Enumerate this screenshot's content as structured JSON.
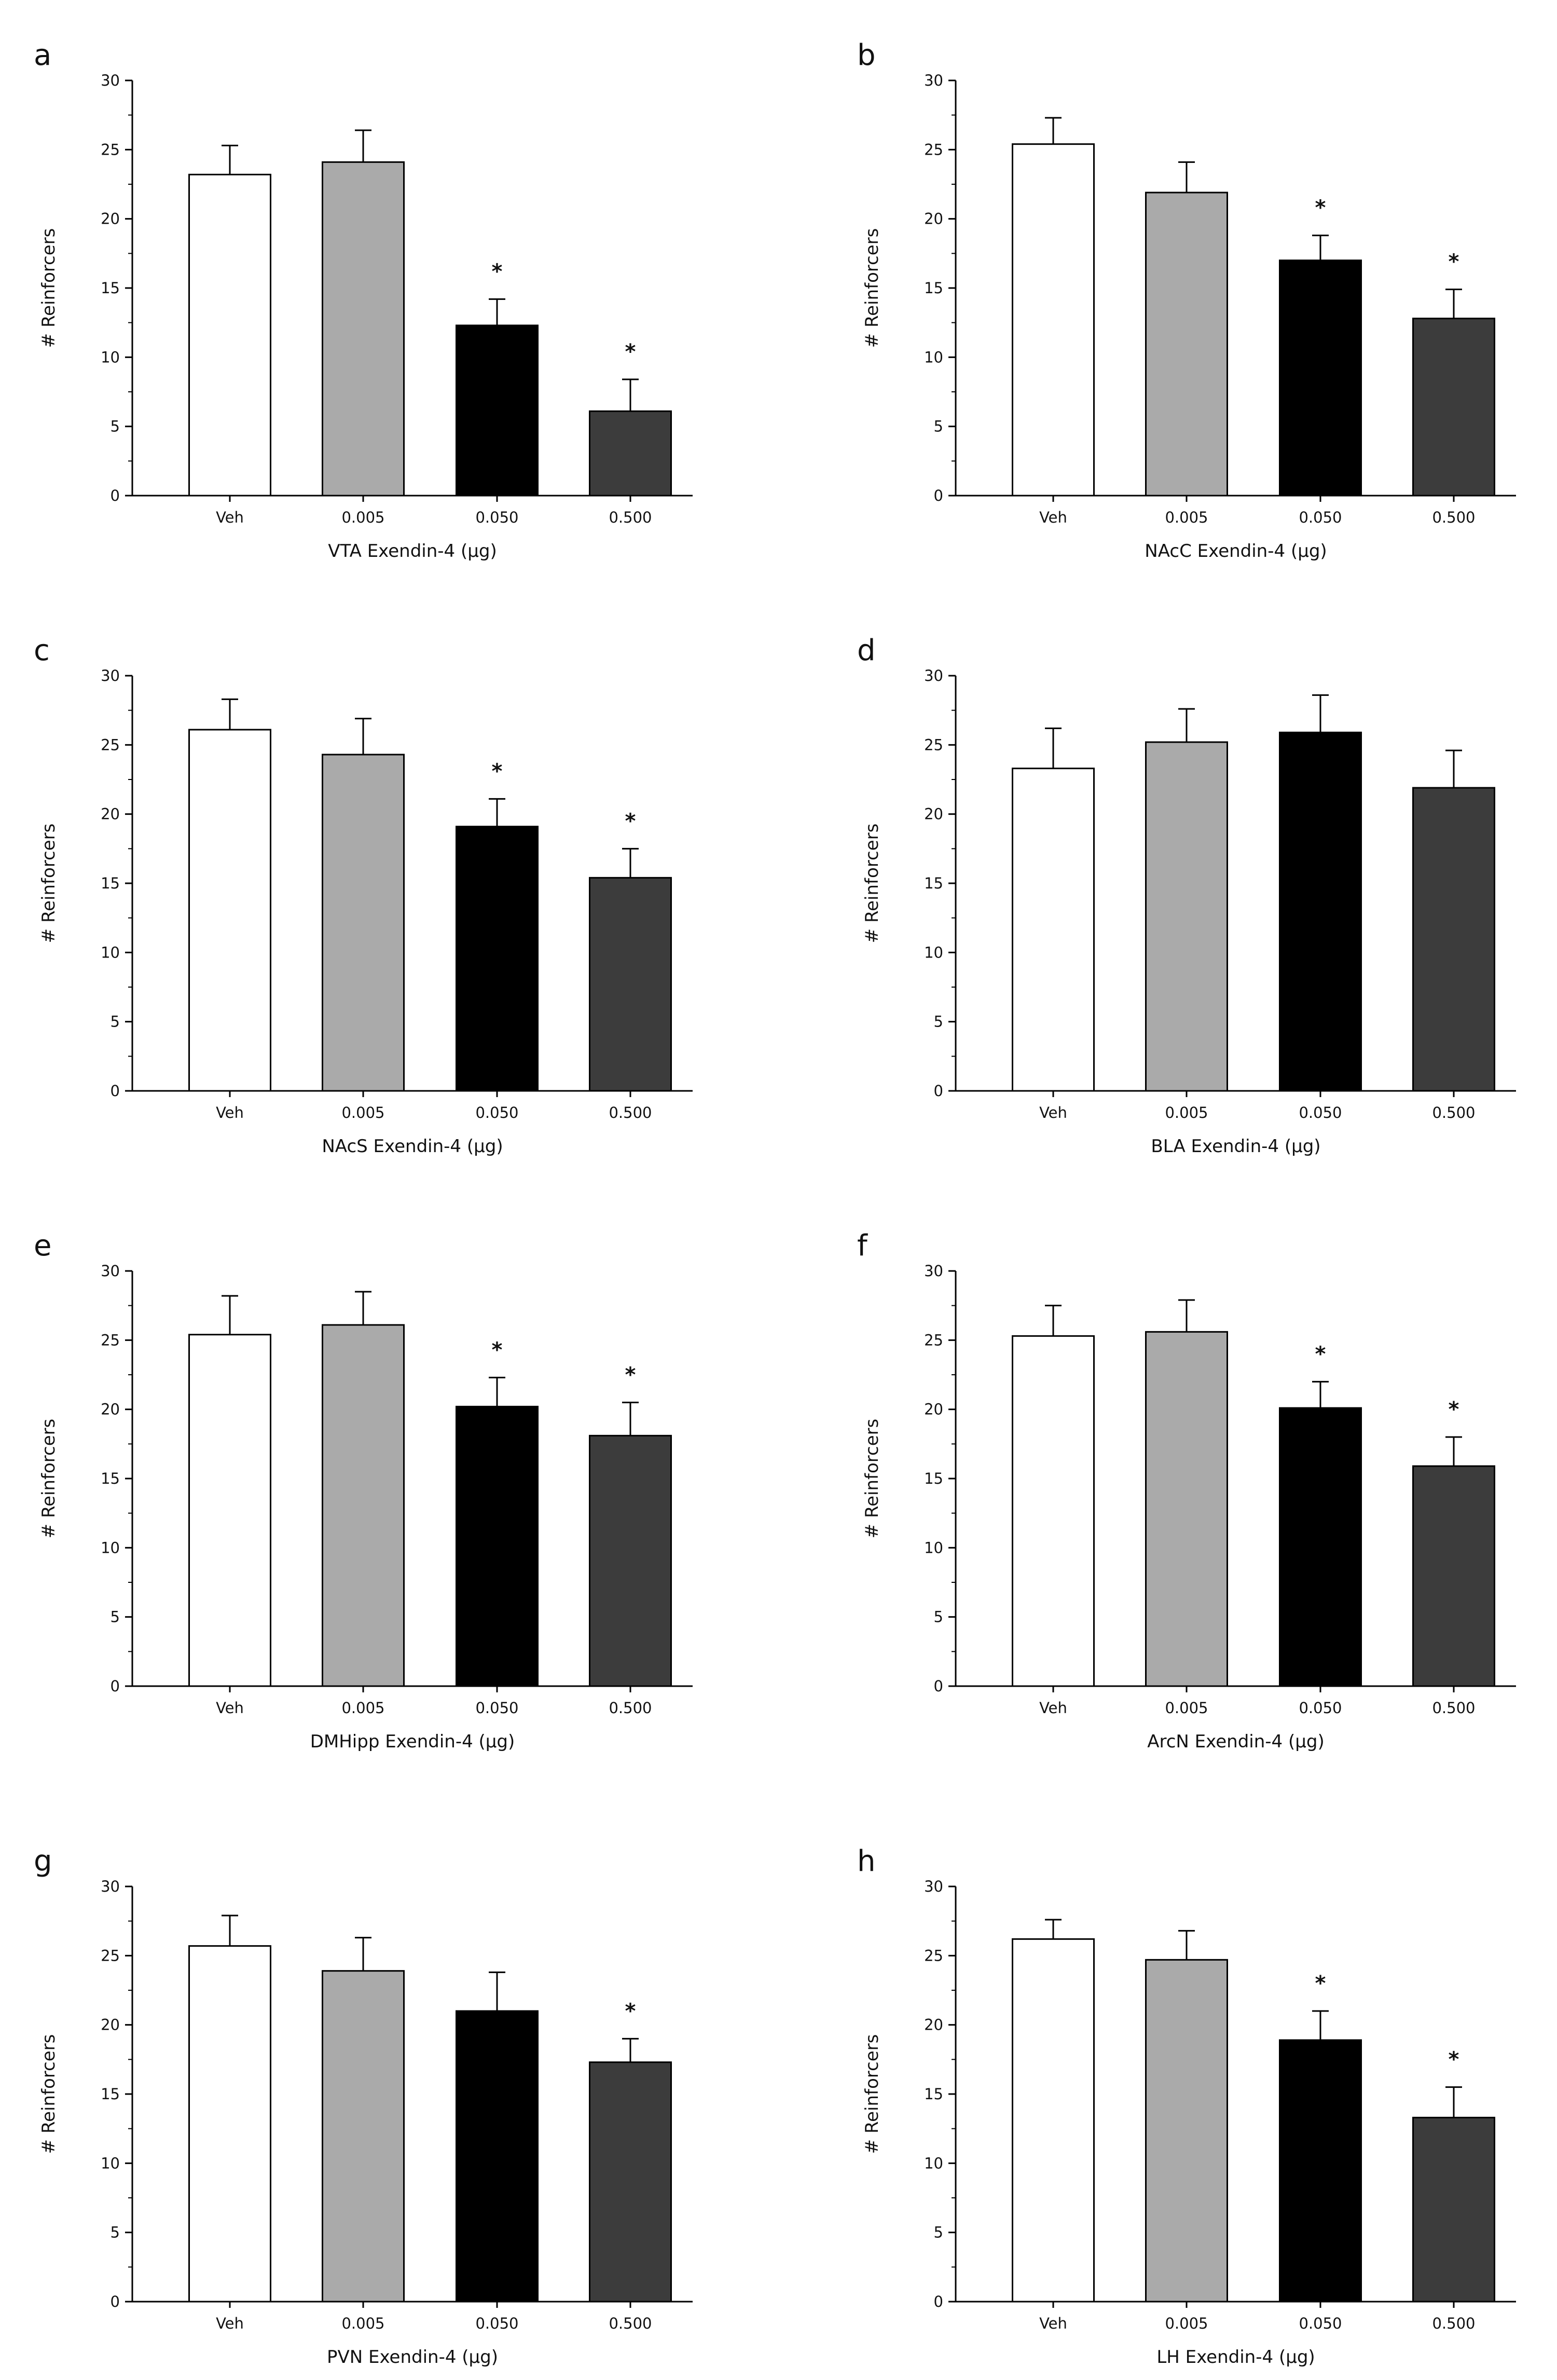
{
  "figure": {
    "panel_count": 8
  },
  "colors": {
    "veh": "#ffffff",
    "d005": "#aaaaaa",
    "d050": "#000000",
    "d500": "#3c3c3c",
    "axis": "#000000"
  },
  "chart_data": [
    {
      "panel": "a",
      "type": "bar",
      "categories": [
        "Veh",
        "0.005",
        "0.050",
        "0.500"
      ],
      "values": [
        23.2,
        24.1,
        12.3,
        6.1
      ],
      "errors": [
        2.1,
        2.3,
        1.9,
        2.3
      ],
      "significant": [
        false,
        false,
        true,
        true
      ],
      "significance_marker": "*",
      "xlabel": "VTA Exendin-4 (µg)",
      "ylabel": "# Reinforcers",
      "ylim": [
        0,
        30
      ],
      "yticks": [
        0,
        5,
        10,
        15,
        20,
        25,
        30
      ]
    },
    {
      "panel": "b",
      "type": "bar",
      "categories": [
        "Veh",
        "0.005",
        "0.050",
        "0.500"
      ],
      "values": [
        25.4,
        21.9,
        17.0,
        12.8
      ],
      "errors": [
        1.9,
        2.2,
        1.8,
        2.1
      ],
      "significant": [
        false,
        false,
        true,
        true
      ],
      "significance_marker": "*",
      "xlabel": "NAcC Exendin-4 (µg)",
      "ylabel": "# Reinforcers",
      "ylim": [
        0,
        30
      ],
      "yticks": [
        0,
        5,
        10,
        15,
        20,
        25,
        30
      ]
    },
    {
      "panel": "c",
      "type": "bar",
      "categories": [
        "Veh",
        "0.005",
        "0.050",
        "0.500"
      ],
      "values": [
        26.1,
        24.3,
        19.1,
        15.4
      ],
      "errors": [
        2.2,
        2.6,
        2.0,
        2.1
      ],
      "significant": [
        false,
        false,
        true,
        true
      ],
      "significance_marker": "*",
      "xlabel": "NAcS Exendin-4 (µg)",
      "ylabel": "# Reinforcers",
      "ylim": [
        0,
        30
      ],
      "yticks": [
        0,
        5,
        10,
        15,
        20,
        25,
        30
      ]
    },
    {
      "panel": "d",
      "type": "bar",
      "categories": [
        "Veh",
        "0.005",
        "0.050",
        "0.500"
      ],
      "values": [
        23.3,
        25.2,
        25.9,
        21.9
      ],
      "errors": [
        2.9,
        2.4,
        2.7,
        2.7
      ],
      "significant": [
        false,
        false,
        false,
        false
      ],
      "significance_marker": "*",
      "xlabel": "BLA Exendin-4 (µg)",
      "ylabel": "# Reinforcers",
      "ylim": [
        0,
        30
      ],
      "yticks": [
        0,
        5,
        10,
        15,
        20,
        25,
        30
      ]
    },
    {
      "panel": "e",
      "type": "bar",
      "categories": [
        "Veh",
        "0.005",
        "0.050",
        "0.500"
      ],
      "values": [
        25.4,
        26.1,
        20.2,
        18.1
      ],
      "errors": [
        2.8,
        2.4,
        2.1,
        2.4
      ],
      "significant": [
        false,
        false,
        true,
        true
      ],
      "significance_marker": "*",
      "xlabel": "DMHipp Exendin-4 (µg)",
      "ylabel": "# Reinforcers",
      "ylim": [
        0,
        30
      ],
      "yticks": [
        0,
        5,
        10,
        15,
        20,
        25,
        30
      ]
    },
    {
      "panel": "f",
      "type": "bar",
      "categories": [
        "Veh",
        "0.005",
        "0.050",
        "0.500"
      ],
      "values": [
        25.3,
        25.6,
        20.1,
        15.9
      ],
      "errors": [
        2.2,
        2.3,
        1.9,
        2.1
      ],
      "significant": [
        false,
        false,
        true,
        true
      ],
      "significance_marker": "*",
      "xlabel": "ArcN Exendin-4 (µg)",
      "ylabel": "# Reinforcers",
      "ylim": [
        0,
        30
      ],
      "yticks": [
        0,
        5,
        10,
        15,
        20,
        25,
        30
      ]
    },
    {
      "panel": "g",
      "type": "bar",
      "categories": [
        "Veh",
        "0.005",
        "0.050",
        "0.500"
      ],
      "values": [
        25.7,
        23.9,
        21.0,
        17.3
      ],
      "errors": [
        2.2,
        2.4,
        2.8,
        1.7
      ],
      "significant": [
        false,
        false,
        false,
        true
      ],
      "significance_marker": "*",
      "xlabel": "PVN Exendin-4 (µg)",
      "ylabel": "# Reinforcers",
      "ylim": [
        0,
        30
      ],
      "yticks": [
        0,
        5,
        10,
        15,
        20,
        25,
        30
      ]
    },
    {
      "panel": "h",
      "type": "bar",
      "categories": [
        "Veh",
        "0.005",
        "0.050",
        "0.500"
      ],
      "values": [
        26.2,
        24.7,
        18.9,
        13.3
      ],
      "errors": [
        1.4,
        2.1,
        2.1,
        2.2
      ],
      "significant": [
        false,
        false,
        true,
        true
      ],
      "significance_marker": "*",
      "xlabel": "LH Exendin-4 (µg)",
      "ylabel": "# Reinforcers",
      "ylim": [
        0,
        30
      ],
      "yticks": [
        0,
        5,
        10,
        15,
        20,
        25,
        30
      ]
    }
  ]
}
